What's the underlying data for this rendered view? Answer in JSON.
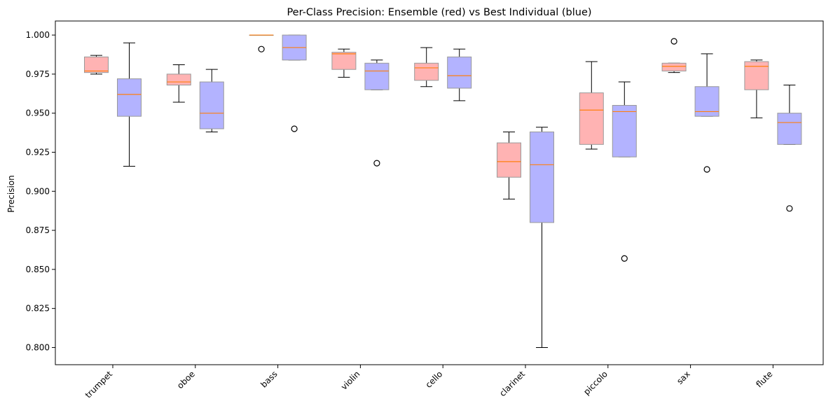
{
  "chart_data": {
    "type": "boxplot",
    "title": "Per-Class Precision: Ensemble (red) vs Best Individual (blue)",
    "xlabel": "",
    "ylabel": "Precision",
    "ylim": [
      0.789,
      1.009
    ],
    "yticks": [
      0.8,
      0.825,
      0.85,
      0.875,
      0.9,
      0.925,
      0.95,
      0.975,
      1.0
    ],
    "ytick_labels": [
      "0.800",
      "0.825",
      "0.850",
      "0.875",
      "0.900",
      "0.925",
      "0.950",
      "0.975",
      "1.000"
    ],
    "categories": [
      "trumpet",
      "oboe",
      "bass",
      "violin",
      "cello",
      "clarinet",
      "piccolo",
      "sax",
      "flute"
    ],
    "grid": false,
    "series": [
      {
        "name": "Ensemble",
        "color": "#ffb3b3",
        "boxes": [
          {
            "whislo": 0.975,
            "q1": 0.976,
            "med": 0.977,
            "q3": 0.986,
            "whishi": 0.987,
            "fliers": []
          },
          {
            "whislo": 0.957,
            "q1": 0.968,
            "med": 0.97,
            "q3": 0.975,
            "whishi": 0.981,
            "fliers": []
          },
          {
            "whislo": 1.0,
            "q1": 1.0,
            "med": 1.0,
            "q3": 1.0,
            "whishi": 1.0,
            "fliers": [
              0.991
            ]
          },
          {
            "whislo": 0.973,
            "q1": 0.978,
            "med": 0.988,
            "q3": 0.989,
            "whishi": 0.991,
            "fliers": []
          },
          {
            "whislo": 0.967,
            "q1": 0.971,
            "med": 0.979,
            "q3": 0.982,
            "whishi": 0.992,
            "fliers": []
          },
          {
            "whislo": 0.895,
            "q1": 0.909,
            "med": 0.919,
            "q3": 0.931,
            "whishi": 0.938,
            "fliers": []
          },
          {
            "whislo": 0.927,
            "q1": 0.93,
            "med": 0.952,
            "q3": 0.963,
            "whishi": 0.983,
            "fliers": []
          },
          {
            "whislo": 0.976,
            "q1": 0.977,
            "med": 0.98,
            "q3": 0.982,
            "whishi": 0.982,
            "fliers": [
              0.996
            ]
          },
          {
            "whislo": 0.947,
            "q1": 0.965,
            "med": 0.98,
            "q3": 0.983,
            "whishi": 0.984,
            "fliers": []
          }
        ]
      },
      {
        "name": "Best Individual",
        "color": "#b3b3ff",
        "boxes": [
          {
            "whislo": 0.916,
            "q1": 0.948,
            "med": 0.962,
            "q3": 0.972,
            "whishi": 0.995,
            "fliers": []
          },
          {
            "whislo": 0.938,
            "q1": 0.94,
            "med": 0.95,
            "q3": 0.97,
            "whishi": 0.978,
            "fliers": []
          },
          {
            "whislo": 0.984,
            "q1": 0.984,
            "med": 0.992,
            "q3": 1.0,
            "whishi": 1.0,
            "fliers": [
              0.94
            ]
          },
          {
            "whislo": 0.965,
            "q1": 0.965,
            "med": 0.977,
            "q3": 0.982,
            "whishi": 0.984,
            "fliers": [
              0.918
            ]
          },
          {
            "whislo": 0.958,
            "q1": 0.966,
            "med": 0.974,
            "q3": 0.986,
            "whishi": 0.991,
            "fliers": []
          },
          {
            "whislo": 0.8,
            "q1": 0.88,
            "med": 0.917,
            "q3": 0.938,
            "whishi": 0.941,
            "fliers": []
          },
          {
            "whislo": 0.922,
            "q1": 0.922,
            "med": 0.951,
            "q3": 0.955,
            "whishi": 0.97,
            "fliers": [
              0.857
            ]
          },
          {
            "whislo": 0.948,
            "q1": 0.948,
            "med": 0.951,
            "q3": 0.967,
            "whishi": 0.988,
            "fliers": [
              0.914
            ]
          },
          {
            "whislo": 0.93,
            "q1": 0.93,
            "med": 0.944,
            "q3": 0.95,
            "whishi": 0.968,
            "fliers": [
              0.889
            ]
          }
        ]
      }
    ],
    "median_color": "#ff7f0e",
    "box_edge_color": "#999999",
    "whisker_color": "#000000"
  }
}
